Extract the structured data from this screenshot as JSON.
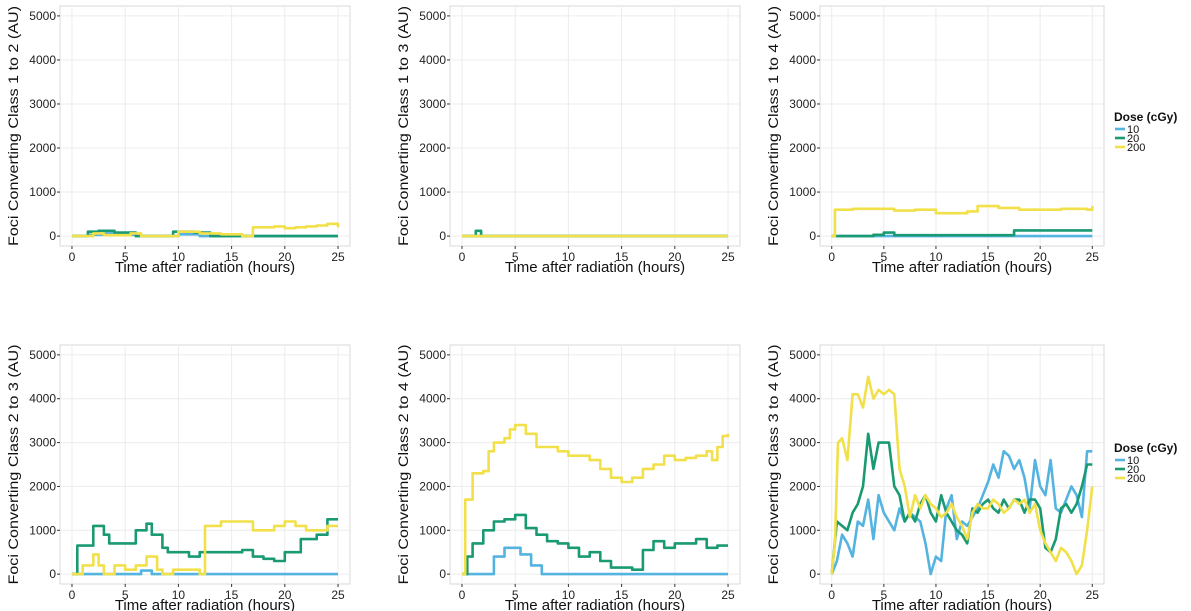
{
  "legend": {
    "title": "Dose (cGy)",
    "entries": [
      {
        "label": "10",
        "color": "#55B3E0"
      },
      {
        "label": "20",
        "color": "#1A9A73"
      },
      {
        "label": "200",
        "color": "#F2E04A"
      }
    ]
  },
  "chart_data": [
    {
      "type": "line",
      "xlabel": "Time after radiation (hours)",
      "ylabel": "Foci Converting Class 1 to 2 (AU)",
      "xlim": [
        0,
        25
      ],
      "ylim": [
        0,
        5000
      ],
      "xticks": [
        0,
        5,
        10,
        15,
        20,
        25
      ],
      "yticks": [
        0,
        1000,
        2000,
        3000,
        4000,
        5000
      ],
      "grid": true,
      "series": [
        {
          "name": "10",
          "color": "#55B3E0",
          "step": true,
          "x": [
            0,
            1.5,
            3,
            4.5,
            6,
            10,
            12,
            16,
            25
          ],
          "y": [
            0,
            30,
            60,
            30,
            0,
            40,
            0,
            0,
            0
          ]
        },
        {
          "name": "20",
          "color": "#1A9A73",
          "step": true,
          "x": [
            0,
            1.5,
            2.5,
            4,
            6,
            8,
            9.5,
            11.5,
            13,
            25
          ],
          "y": [
            0,
            100,
            120,
            80,
            0,
            0,
            100,
            80,
            0,
            0
          ]
        },
        {
          "name": "200",
          "color": "#F2E04A",
          "step": true,
          "x": [
            0,
            2,
            3,
            5.5,
            6.5,
            8,
            10,
            12,
            14,
            16,
            17,
            19,
            20,
            21,
            22,
            23,
            24,
            25
          ],
          "y": [
            0,
            60,
            20,
            60,
            0,
            0,
            100,
            60,
            40,
            0,
            200,
            220,
            180,
            200,
            220,
            240,
            280,
            200
          ]
        }
      ]
    },
    {
      "type": "line",
      "xlabel": "Time after radiation (hours)",
      "ylabel": "Foci Converting Class 1 to 3 (AU)",
      "xlim": [
        0,
        25
      ],
      "ylim": [
        0,
        5000
      ],
      "xticks": [
        0,
        5,
        10,
        15,
        20,
        25
      ],
      "yticks": [
        0,
        1000,
        2000,
        3000,
        4000,
        5000
      ],
      "grid": true,
      "series": [
        {
          "name": "10",
          "color": "#55B3E0",
          "step": true,
          "x": [
            0,
            25
          ],
          "y": [
            0,
            0
          ]
        },
        {
          "name": "20",
          "color": "#1A9A73",
          "step": true,
          "x": [
            0,
            1.3,
            1.8,
            25
          ],
          "y": [
            0,
            120,
            0,
            0
          ]
        },
        {
          "name": "200",
          "color": "#F2E04A",
          "step": true,
          "x": [
            0,
            25
          ],
          "y": [
            0,
            0
          ]
        }
      ]
    },
    {
      "type": "line",
      "xlabel": "Time after radiation (hours)",
      "ylabel": "Foci Converting Class 1 to 4 (AU)",
      "xlim": [
        0,
        25
      ],
      "ylim": [
        0,
        5000
      ],
      "xticks": [
        0,
        5,
        10,
        15,
        20,
        25
      ],
      "yticks": [
        0,
        1000,
        2000,
        3000,
        4000,
        5000
      ],
      "grid": true,
      "series": [
        {
          "name": "10",
          "color": "#55B3E0",
          "step": true,
          "x": [
            0,
            25
          ],
          "y": [
            0,
            0
          ]
        },
        {
          "name": "20",
          "color": "#1A9A73",
          "step": true,
          "x": [
            0,
            4,
            5,
            6,
            17.5,
            25
          ],
          "y": [
            0,
            30,
            80,
            20,
            130,
            130
          ]
        },
        {
          "name": "200",
          "color": "#F2E04A",
          "step": true,
          "x": [
            0,
            0.3,
            2,
            6,
            8,
            10,
            13,
            14,
            16,
            18,
            22,
            24.5,
            25
          ],
          "y": [
            0,
            600,
            620,
            580,
            600,
            520,
            560,
            680,
            640,
            600,
            620,
            600,
            680
          ]
        }
      ]
    },
    {
      "type": "line",
      "xlabel": "Time after radiation (hours)",
      "ylabel": "Foci Converting Class 2 to 3 (AU)",
      "xlim": [
        0,
        25
      ],
      "ylim": [
        0,
        5000
      ],
      "xticks": [
        0,
        5,
        10,
        15,
        20,
        25
      ],
      "yticks": [
        0,
        1000,
        2000,
        3000,
        4000,
        5000
      ],
      "grid": true,
      "series": [
        {
          "name": "10",
          "color": "#55B3E0",
          "step": true,
          "x": [
            0,
            5,
            6.5,
            7.5,
            25
          ],
          "y": [
            0,
            0,
            80,
            0,
            0
          ]
        },
        {
          "name": "20",
          "color": "#1A9A73",
          "step": true,
          "x": [
            0,
            0.5,
            2,
            3,
            3.5,
            6,
            7,
            7.5,
            8.5,
            9,
            11,
            12,
            16,
            17,
            18,
            19,
            20,
            21.5,
            23,
            24,
            25
          ],
          "y": [
            0,
            650,
            1100,
            900,
            700,
            1000,
            1150,
            900,
            600,
            500,
            400,
            500,
            550,
            400,
            350,
            300,
            500,
            800,
            900,
            1250,
            1250
          ]
        },
        {
          "name": "200",
          "color": "#F2E04A",
          "step": true,
          "x": [
            0,
            1,
            2,
            2.5,
            3,
            4,
            5,
            6,
            7,
            8,
            8.5,
            9.5,
            12,
            12.5,
            14,
            16,
            17,
            19,
            20,
            21,
            22,
            24,
            25
          ],
          "y": [
            0,
            200,
            450,
            200,
            0,
            200,
            100,
            200,
            400,
            100,
            0,
            100,
            0,
            1100,
            1200,
            1200,
            1000,
            1100,
            1200,
            1100,
            1000,
            1100,
            1100
          ]
        }
      ]
    },
    {
      "type": "line",
      "xlabel": "Time after radiation (hours)",
      "ylabel": "Foci Converting Class 2 to 4 (AU)",
      "xlim": [
        0,
        25
      ],
      "ylim": [
        0,
        5000
      ],
      "xticks": [
        0,
        5,
        10,
        15,
        20,
        25
      ],
      "yticks": [
        0,
        1000,
        2000,
        3000,
        4000,
        5000
      ],
      "grid": true,
      "series": [
        {
          "name": "10",
          "color": "#55B3E0",
          "step": true,
          "x": [
            0,
            2,
            3,
            4,
            5.5,
            6.5,
            7.5,
            25
          ],
          "y": [
            0,
            0,
            400,
            600,
            450,
            200,
            0,
            0
          ]
        },
        {
          "name": "20",
          "color": "#1A9A73",
          "step": true,
          "x": [
            0,
            0.5,
            1,
            2,
            3,
            4,
            5,
            6,
            7,
            8,
            9,
            10,
            11,
            12,
            13,
            14,
            16,
            17,
            18,
            19,
            20,
            22,
            23,
            24,
            25
          ],
          "y": [
            0,
            400,
            700,
            1000,
            1200,
            1250,
            1350,
            1050,
            900,
            750,
            700,
            600,
            400,
            500,
            300,
            150,
            100,
            550,
            750,
            600,
            700,
            800,
            600,
            650,
            650
          ]
        },
        {
          "name": "200",
          "color": "#F2E04A",
          "step": true,
          "x": [
            0,
            0.3,
            1,
            2,
            2.5,
            3,
            4,
            4.5,
            5,
            6,
            7,
            9,
            10,
            12,
            13,
            14,
            15,
            16,
            17,
            18,
            19,
            20,
            21,
            22,
            23,
            23.5,
            24,
            24.5,
            25
          ],
          "y": [
            0,
            1700,
            2300,
            2350,
            2800,
            3000,
            3100,
            3300,
            3400,
            3200,
            2900,
            2800,
            2700,
            2600,
            2400,
            2200,
            2100,
            2200,
            2400,
            2500,
            2700,
            2600,
            2650,
            2700,
            2800,
            2600,
            2900,
            3150,
            3200
          ]
        }
      ]
    },
    {
      "type": "line",
      "xlabel": "Time after radiation (hours)",
      "ylabel": "Foci Converting Class 3 to 4 (AU)",
      "xlim": [
        0,
        25
      ],
      "ylim": [
        0,
        5000
      ],
      "xticks": [
        0,
        5,
        10,
        15,
        20,
        25
      ],
      "yticks": [
        0,
        1000,
        2000,
        3000,
        4000,
        5000
      ],
      "grid": true,
      "series": [
        {
          "name": "10",
          "color": "#55B3E0",
          "step": false,
          "x": [
            0,
            0.5,
            1,
            1.5,
            2,
            2.5,
            3,
            3.5,
            4,
            4.5,
            5,
            5.5,
            6,
            6.5,
            7,
            7.5,
            8,
            8.5,
            9,
            9.5,
            10,
            10.5,
            11,
            11.5,
            12,
            12.5,
            13,
            13.5,
            14,
            14.5,
            15,
            15.5,
            16,
            16.5,
            17,
            17.5,
            18,
            18.5,
            19,
            19.5,
            20,
            20.5,
            21,
            21.5,
            22,
            22.5,
            23,
            23.5,
            24,
            24.5,
            25
          ],
          "y": [
            0,
            300,
            900,
            700,
            400,
            1200,
            1100,
            1700,
            800,
            1800,
            1400,
            1200,
            1000,
            1500,
            1200,
            1400,
            1300,
            1200,
            700,
            0,
            400,
            300,
            1500,
            1800,
            800,
            1200,
            1100,
            1300,
            1500,
            1800,
            2100,
            2500,
            2200,
            2800,
            2700,
            2400,
            2600,
            2200,
            1500,
            2600,
            2000,
            1800,
            2600,
            1500,
            1400,
            1700,
            2000,
            1800,
            1300,
            2800,
            2800
          ]
        },
        {
          "name": "20",
          "color": "#1A9A73",
          "step": false,
          "x": [
            0,
            0.5,
            1,
            1.5,
            2,
            2.5,
            3,
            3.5,
            4,
            4.5,
            5,
            5.5,
            6,
            6.5,
            7,
            7.5,
            8,
            8.5,
            9,
            9.5,
            10,
            10.5,
            11,
            11.5,
            12,
            12.5,
            13,
            13.5,
            14,
            14.5,
            15,
            15.5,
            16,
            16.5,
            17,
            17.5,
            18,
            18.5,
            19,
            19.5,
            20,
            20.5,
            21,
            21.5,
            22,
            22.5,
            23,
            23.5,
            24,
            24.5,
            25
          ],
          "y": [
            0,
            1200,
            1100,
            1000,
            1400,
            1600,
            2000,
            3200,
            2400,
            3000,
            3000,
            3000,
            2000,
            1800,
            1200,
            1400,
            1200,
            1600,
            1800,
            1400,
            1200,
            1800,
            1400,
            1200,
            1000,
            900,
            700,
            1500,
            1400,
            1600,
            1700,
            1500,
            1400,
            1700,
            1500,
            1700,
            1700,
            1400,
            1700,
            1700,
            1500,
            600,
            500,
            800,
            1500,
            1600,
            1400,
            1600,
            2000,
            2500,
            2500
          ]
        },
        {
          "name": "200",
          "color": "#F2E04A",
          "step": false,
          "x": [
            0,
            0.3,
            0.6,
            1,
            1.5,
            2,
            2.5,
            3,
            3.5,
            4,
            4.5,
            5,
            5.5,
            6,
            6.5,
            7,
            7.5,
            8,
            8.5,
            9,
            9.5,
            10,
            10.5,
            11,
            11.5,
            12,
            12.5,
            13,
            13.5,
            14,
            14.5,
            15,
            15.5,
            16,
            16.5,
            17,
            17.5,
            18,
            18.5,
            19,
            19.5,
            20,
            20.5,
            21,
            21.5,
            22,
            22.5,
            23,
            23.5,
            24,
            24.5,
            25
          ],
          "y": [
            0,
            700,
            3000,
            3100,
            2600,
            4100,
            4100,
            3800,
            4500,
            4000,
            4200,
            4100,
            4200,
            4100,
            2400,
            2000,
            1300,
            1800,
            1500,
            1800,
            1600,
            1500,
            1300,
            1400,
            1600,
            1300,
            1100,
            800,
            1400,
            1600,
            1500,
            1500,
            1700,
            1600,
            1400,
            1500,
            1700,
            1600,
            1700,
            1400,
            1600,
            1000,
            700,
            500,
            300,
            600,
            500,
            300,
            0,
            200,
            1000,
            2000
          ]
        }
      ]
    }
  ]
}
